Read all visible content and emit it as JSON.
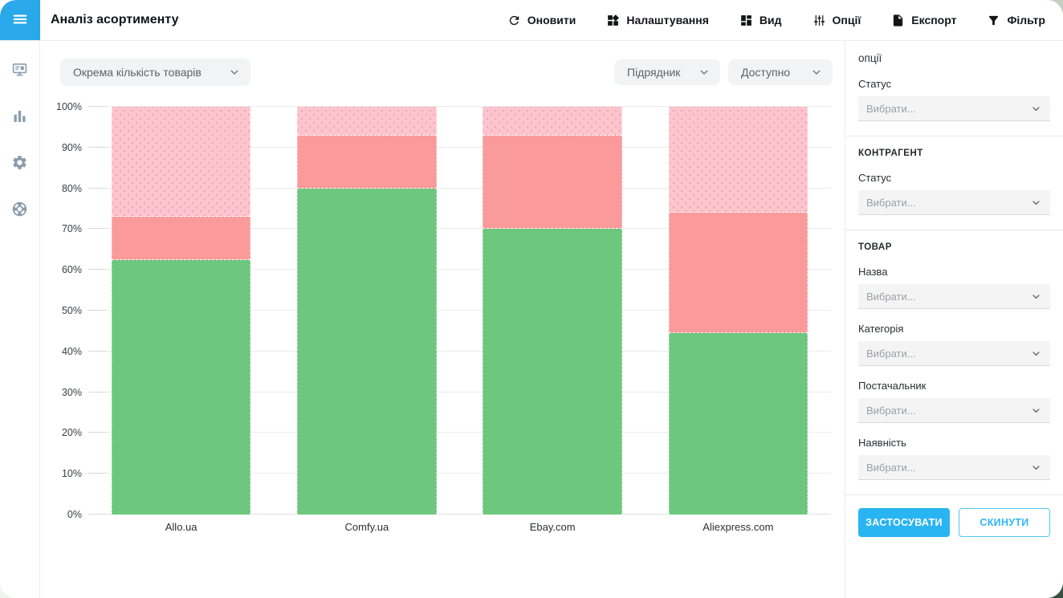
{
  "app_title": "Аналіз асортименту",
  "toolbar": {
    "items": [
      {
        "name": "refresh",
        "label": "Оновити",
        "icon": "refresh-icon"
      },
      {
        "name": "settings",
        "label": "Налаштування",
        "icon": "widgets-icon"
      },
      {
        "name": "view",
        "label": "Вид",
        "icon": "dashboard-icon"
      },
      {
        "name": "options",
        "label": "Опції",
        "icon": "sliders-icon"
      },
      {
        "name": "export",
        "label": "Експорт",
        "icon": "export-file-icon"
      },
      {
        "name": "filter",
        "label": "Фільтр",
        "icon": "filter-funnel-icon"
      }
    ]
  },
  "sidebar": {
    "items": [
      {
        "name": "dashboard",
        "icon": "monitor-dashboard-icon"
      },
      {
        "name": "reports",
        "icon": "bar-chart-icon"
      },
      {
        "name": "settings",
        "icon": "gear-icon"
      },
      {
        "name": "support",
        "icon": "lifebuoy-icon"
      }
    ]
  },
  "controls": {
    "metric_select": {
      "value": "Окрема кількість товарів"
    },
    "contractor_select": {
      "value": "Підрядник"
    },
    "availability_select": {
      "value": "Доступно"
    }
  },
  "chart_data": {
    "type": "bar",
    "stacked": true,
    "stack_mode": "percent",
    "categories": [
      "Allo.ua",
      "Comfy.ua",
      "Ebay.com",
      "Aliexpress.com"
    ],
    "series": [
      {
        "name": "bottom-green",
        "color": "#6dc77e",
        "values": [
          62.5,
          80,
          70,
          44.5
        ]
      },
      {
        "name": "middle-salmon",
        "color": "#fb9a9a",
        "values": [
          10.5,
          13,
          23,
          29.5
        ]
      },
      {
        "name": "top-pink-dotted",
        "color": "#fcc5ce",
        "pattern": "dots",
        "values": [
          27,
          7,
          7,
          26
        ]
      }
    ],
    "y_ticks": [
      "0%",
      "10%",
      "20%",
      "30%",
      "40%",
      "50%",
      "60%",
      "70%",
      "80%",
      "90%",
      "100%"
    ],
    "ylim": [
      0,
      100
    ],
    "grid": true,
    "legend": "none"
  },
  "right_panel": {
    "sections": [
      {
        "title": "опції",
        "fields": [
          {
            "label": "Статус",
            "placeholder": "Вибрати..."
          }
        ]
      },
      {
        "title": "КОНТРАГЕНТ",
        "fields": [
          {
            "label": "Статус",
            "placeholder": "Вибрати..."
          }
        ]
      },
      {
        "title": "ТОВАР",
        "fields": [
          {
            "label": "Назва",
            "placeholder": "Вибрати..."
          },
          {
            "label": "Категорія",
            "placeholder": "Вибрати..."
          },
          {
            "label": "Постачальник",
            "placeholder": "Вибрати..."
          },
          {
            "label": "Наявність",
            "placeholder": "Вибрати..."
          }
        ]
      }
    ],
    "apply_label": "ЗАСТОСУВАТИ",
    "reset_label": "СКИНУТИ"
  },
  "colors": {
    "accent_blue": "#29b4f2",
    "menu_blue": "#29a9e9",
    "bar_green": "#6dc77e",
    "bar_salmon": "#fb9a9a",
    "bar_pink": "#fcc5ce"
  }
}
